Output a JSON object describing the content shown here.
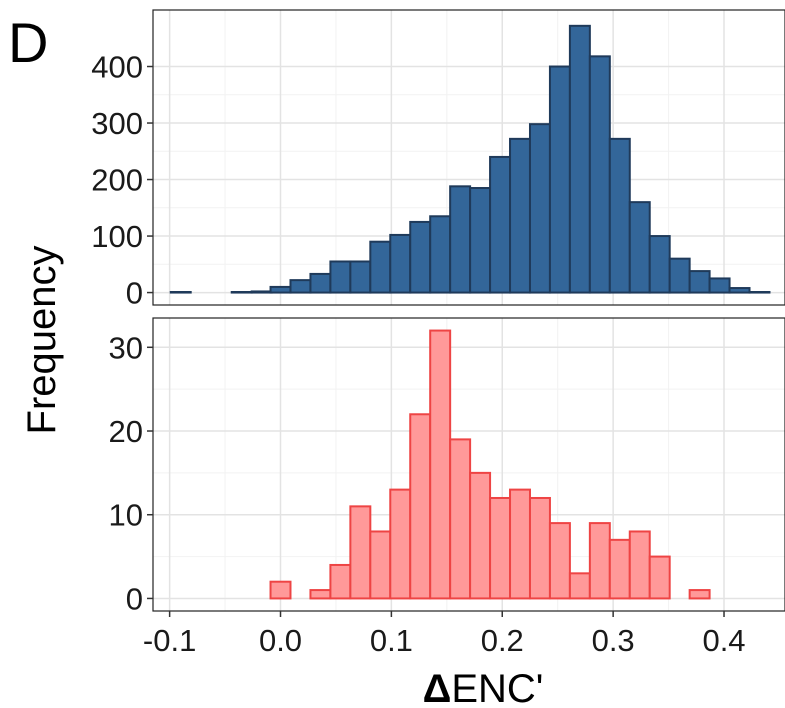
{
  "panel_label": "D",
  "chart_data": {
    "type": "bar",
    "xlabel_symbol": "Δ",
    "xlabel_rest": "ENC'",
    "ylabel": "Frequency",
    "x_ticks": [
      "-0.1",
      "0.0",
      "0.1",
      "0.2",
      "0.3",
      "0.4"
    ],
    "x_tick_values": [
      -0.1,
      0.0,
      0.1,
      0.2,
      0.3,
      0.4
    ],
    "xlim": [
      -0.115,
      0.455
    ],
    "grid": true,
    "panels": [
      {
        "color": "#336699",
        "edge": "#1f3a5a",
        "ylim": [
          -22,
          500
        ],
        "y_ticks": [
          "0",
          "100",
          "200",
          "300",
          "400"
        ],
        "y_tick_values": [
          0,
          100,
          200,
          300,
          400
        ],
        "bins": [
          {
            "x": -0.09,
            "value": 1
          },
          {
            "x": -0.035,
            "value": 1
          },
          {
            "x": -0.017,
            "value": 2
          },
          {
            "x": 0.0,
            "value": 10
          },
          {
            "x": 0.018,
            "value": 22
          },
          {
            "x": 0.036,
            "value": 33
          },
          {
            "x": 0.054,
            "value": 55
          },
          {
            "x": 0.072,
            "value": 55
          },
          {
            "x": 0.09,
            "value": 90
          },
          {
            "x": 0.108,
            "value": 102
          },
          {
            "x": 0.126,
            "value": 125
          },
          {
            "x": 0.144,
            "value": 135
          },
          {
            "x": 0.162,
            "value": 188
          },
          {
            "x": 0.18,
            "value": 185
          },
          {
            "x": 0.198,
            "value": 240
          },
          {
            "x": 0.216,
            "value": 272
          },
          {
            "x": 0.234,
            "value": 298
          },
          {
            "x": 0.252,
            "value": 400
          },
          {
            "x": 0.27,
            "value": 472
          },
          {
            "x": 0.288,
            "value": 418
          },
          {
            "x": 0.306,
            "value": 272
          },
          {
            "x": 0.324,
            "value": 160
          },
          {
            "x": 0.342,
            "value": 100
          },
          {
            "x": 0.36,
            "value": 60
          },
          {
            "x": 0.378,
            "value": 38
          },
          {
            "x": 0.396,
            "value": 25
          },
          {
            "x": 0.414,
            "value": 8
          },
          {
            "x": 0.432,
            "value": 1
          }
        ]
      },
      {
        "color": "#ff9999",
        "edge": "#ee4444",
        "ylim": [
          -1.5,
          33.5
        ],
        "y_ticks": [
          "0",
          "10",
          "20",
          "30"
        ],
        "y_tick_values": [
          0,
          10,
          20,
          30
        ],
        "bins": [
          {
            "x": 0.0,
            "value": 2
          },
          {
            "x": 0.036,
            "value": 1
          },
          {
            "x": 0.054,
            "value": 4
          },
          {
            "x": 0.072,
            "value": 11
          },
          {
            "x": 0.09,
            "value": 8
          },
          {
            "x": 0.108,
            "value": 13
          },
          {
            "x": 0.126,
            "value": 22
          },
          {
            "x": 0.144,
            "value": 32
          },
          {
            "x": 0.162,
            "value": 19
          },
          {
            "x": 0.18,
            "value": 15
          },
          {
            "x": 0.198,
            "value": 12
          },
          {
            "x": 0.216,
            "value": 13
          },
          {
            "x": 0.234,
            "value": 12
          },
          {
            "x": 0.252,
            "value": 9
          },
          {
            "x": 0.27,
            "value": 3
          },
          {
            "x": 0.288,
            "value": 9
          },
          {
            "x": 0.306,
            "value": 7
          },
          {
            "x": 0.324,
            "value": 8
          },
          {
            "x": 0.342,
            "value": 5
          },
          {
            "x": 0.378,
            "value": 1
          }
        ]
      }
    ]
  }
}
